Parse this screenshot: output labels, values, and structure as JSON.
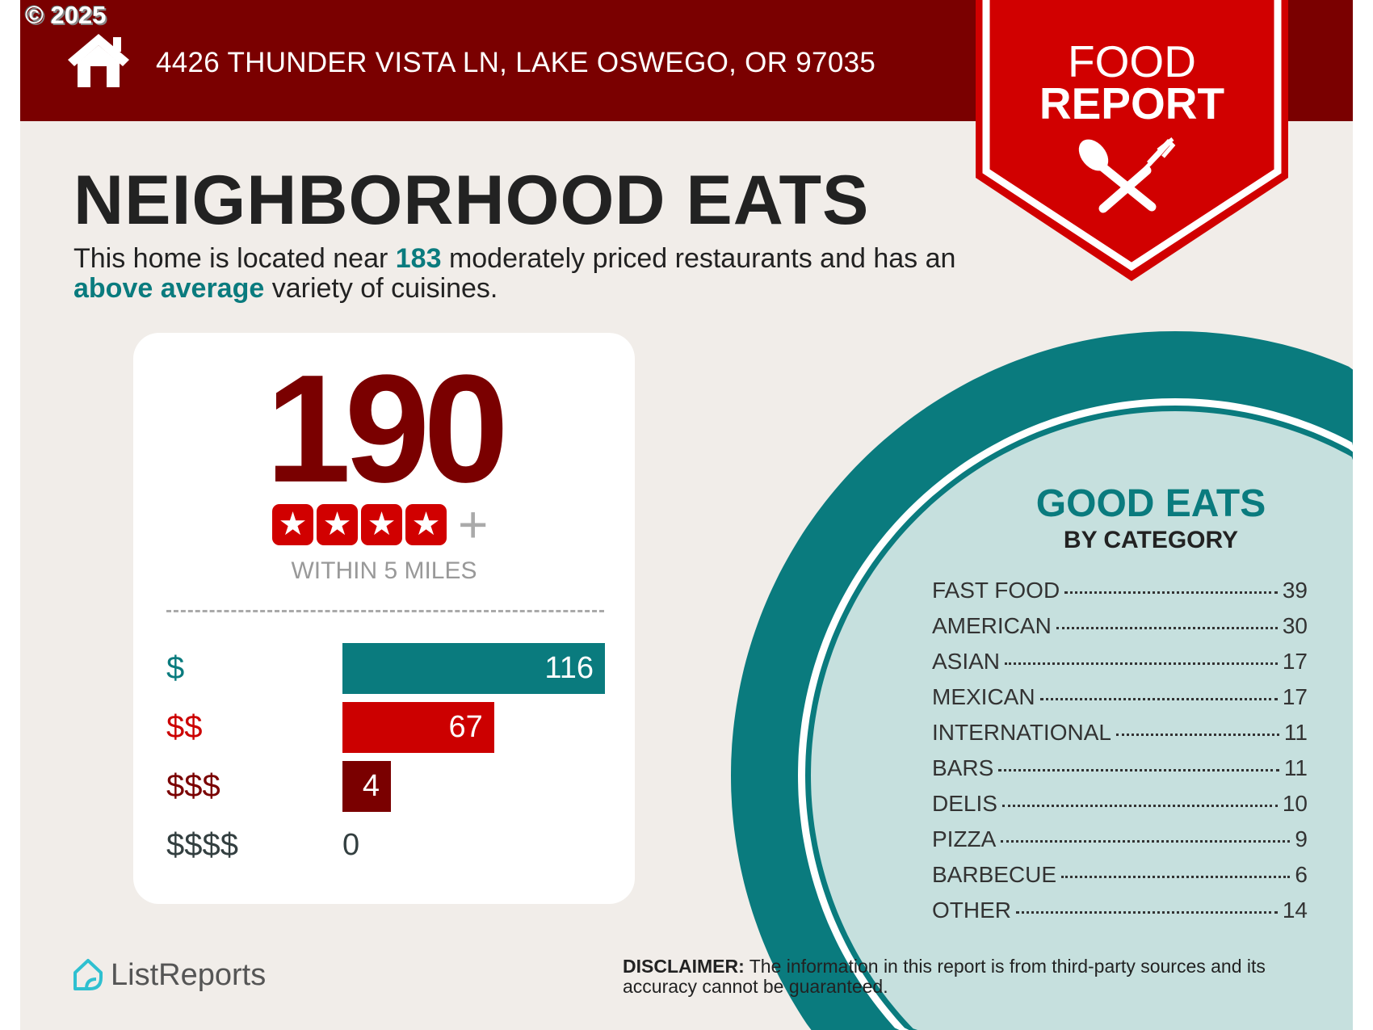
{
  "copyright": "© 2025",
  "header": {
    "address": "4426 THUNDER VISTA LN, LAKE OSWEGO, OR 97035",
    "icon": "house-icon"
  },
  "badge": {
    "line1": "FOOD",
    "line2": "REPORT",
    "icon": "spoon-fork-icon"
  },
  "title": "NEIGHBORHOOD EATS",
  "intro": {
    "part1": "This home is located near ",
    "count": "183",
    "part2": " moderately priced restaurants and has an ",
    "variety": "above average",
    "part3": " variety of cuisines."
  },
  "summary": {
    "total": "190",
    "stars": 4,
    "plus": "+",
    "within": "WITHIN 5 MILES"
  },
  "price_levels": [
    {
      "label": "$",
      "value": 116,
      "color": "#0a7b7e"
    },
    {
      "label": "$$",
      "value": 67,
      "color": "#cc0000"
    },
    {
      "label": "$$$",
      "value": 4,
      "color": "#7a0000"
    },
    {
      "label": "$$$$",
      "value": 0,
      "color": "#333f40"
    }
  ],
  "good_eats": {
    "title": "GOOD EATS",
    "subtitle": "BY CATEGORY",
    "categories": [
      {
        "name": "FAST FOOD",
        "count": "39"
      },
      {
        "name": "AMERICAN",
        "count": "30"
      },
      {
        "name": "ASIAN",
        "count": "17"
      },
      {
        "name": "MEXICAN",
        "count": "17"
      },
      {
        "name": "INTERNATIONAL",
        "count": "11"
      },
      {
        "name": "BARS",
        "count": "11"
      },
      {
        "name": "DELIS",
        "count": "10"
      },
      {
        "name": "PIZZA",
        "count": "9"
      },
      {
        "name": "BARBECUE",
        "count": "6"
      },
      {
        "name": "OTHER",
        "count": "14"
      }
    ]
  },
  "footer": {
    "logo": "ListReports",
    "disclaimer_label": "DISCLAIMER:",
    "disclaimer_text": " The information in this report is from third-party sources and its accuracy cannot be guaranteed."
  },
  "colors": {
    "header": "#7a0000",
    "badge": "#d10000",
    "teal": "#0a7b7e",
    "light_teal": "#c6e0de",
    "background": "#f1ede9"
  }
}
